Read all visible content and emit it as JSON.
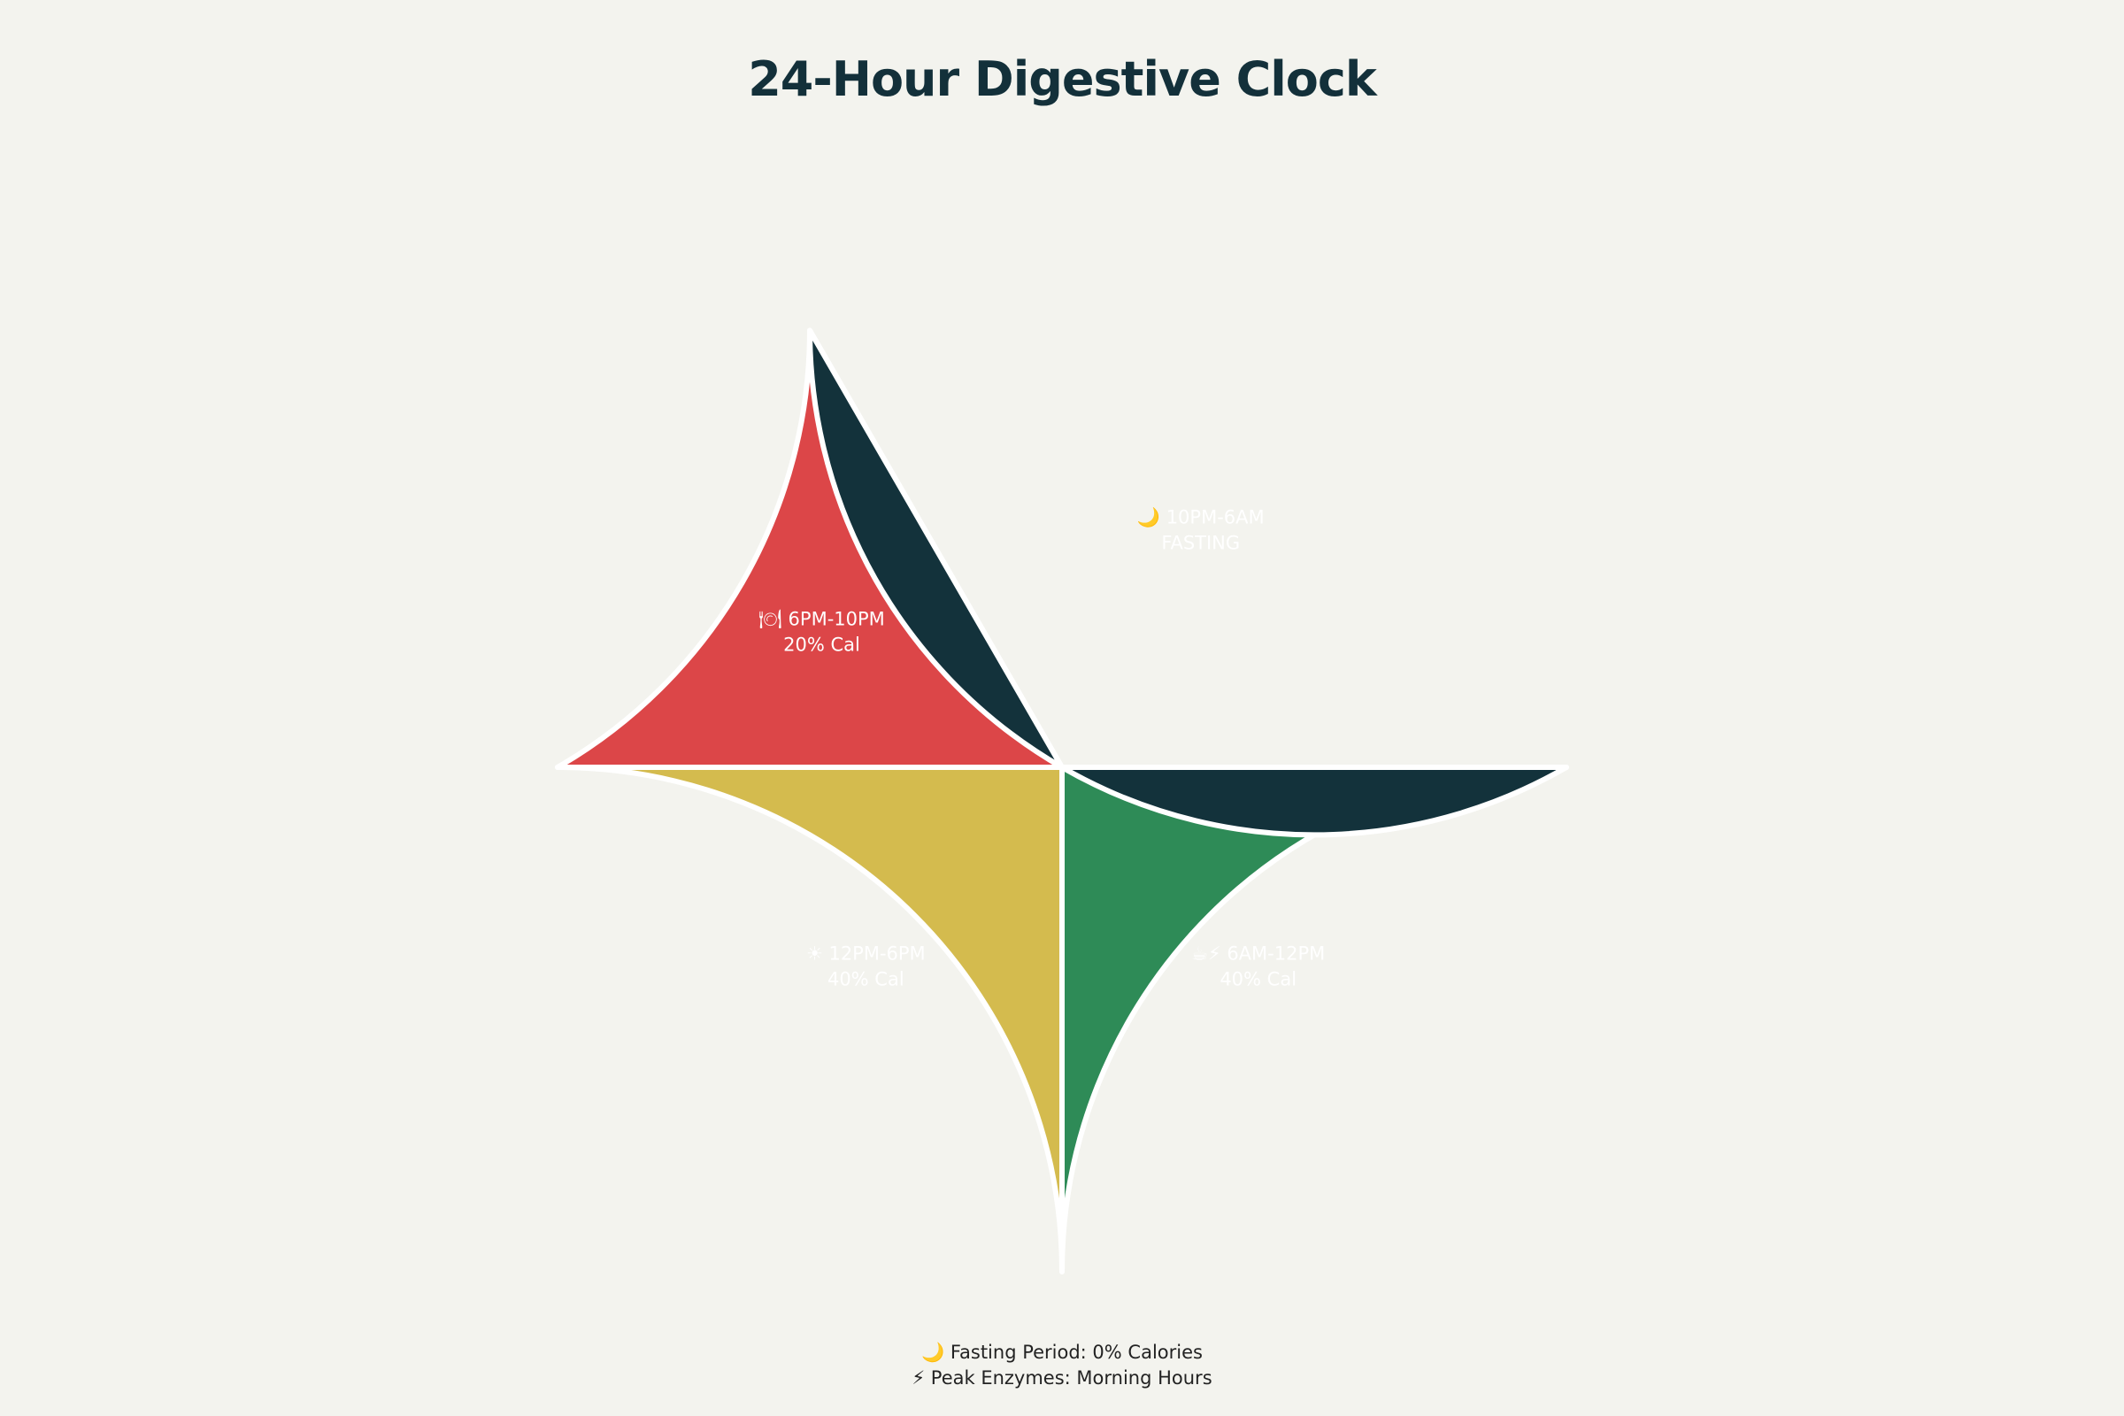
{
  "chart_data": {
    "type": "pie",
    "title": "24-Hour Digestive Clock",
    "start_angle_deg": 0,
    "direction": "counterclockwise",
    "slices": [
      {
        "label": "☕⚡ 6AM-12PM",
        "sublabel": "40% Cal",
        "value": 6,
        "color": "#2e8b57"
      },
      {
        "label": "☀ 12PM-6PM",
        "sublabel": "40% Cal",
        "value": 6,
        "color": "#d4bb4e"
      },
      {
        "label": "🍽 6PM-10PM",
        "sublabel": "20% Cal",
        "value": 4,
        "color": "#dc4648"
      },
      {
        "label": "🌙 10PM-6AM",
        "sublabel": "FASTING",
        "value": 8,
        "color": "#13323b"
      }
    ],
    "border_color": "#ffffff",
    "annotations": [
      "🌙 Fasting Period: 0% Calories",
      "⚡ Peak Enzymes: Morning Hours"
    ]
  }
}
